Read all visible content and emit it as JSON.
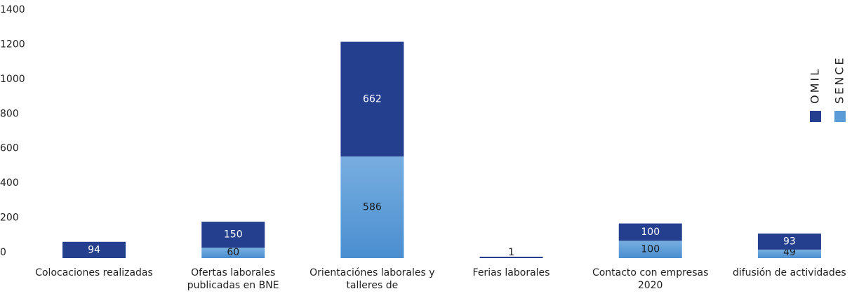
{
  "chart_data": {
    "type": "stacked_bar",
    "categories": [
      "Colocaciones realizadas",
      "Ofertas laborales\npublicadas en BNE",
      "Orientaciónes laborales y\ntalleres de",
      "Ferias laborales",
      "Contacto con empresas\n2020",
      "difusión de actividades"
    ],
    "series": [
      {
        "name": "SENCE",
        "color": "#5b9bd8",
        "values": [
          null,
          60,
          586,
          null,
          100,
          49
        ]
      },
      {
        "name": "OMIL",
        "color": "#253f8f",
        "values": [
          94,
          150,
          662,
          1,
          100,
          93
        ]
      }
    ],
    "ylim": [
      0,
      1400
    ],
    "yticks": [
      0,
      200,
      400,
      600,
      800,
      1000,
      1200,
      1400
    ],
    "legend": "right",
    "grid": false
  }
}
